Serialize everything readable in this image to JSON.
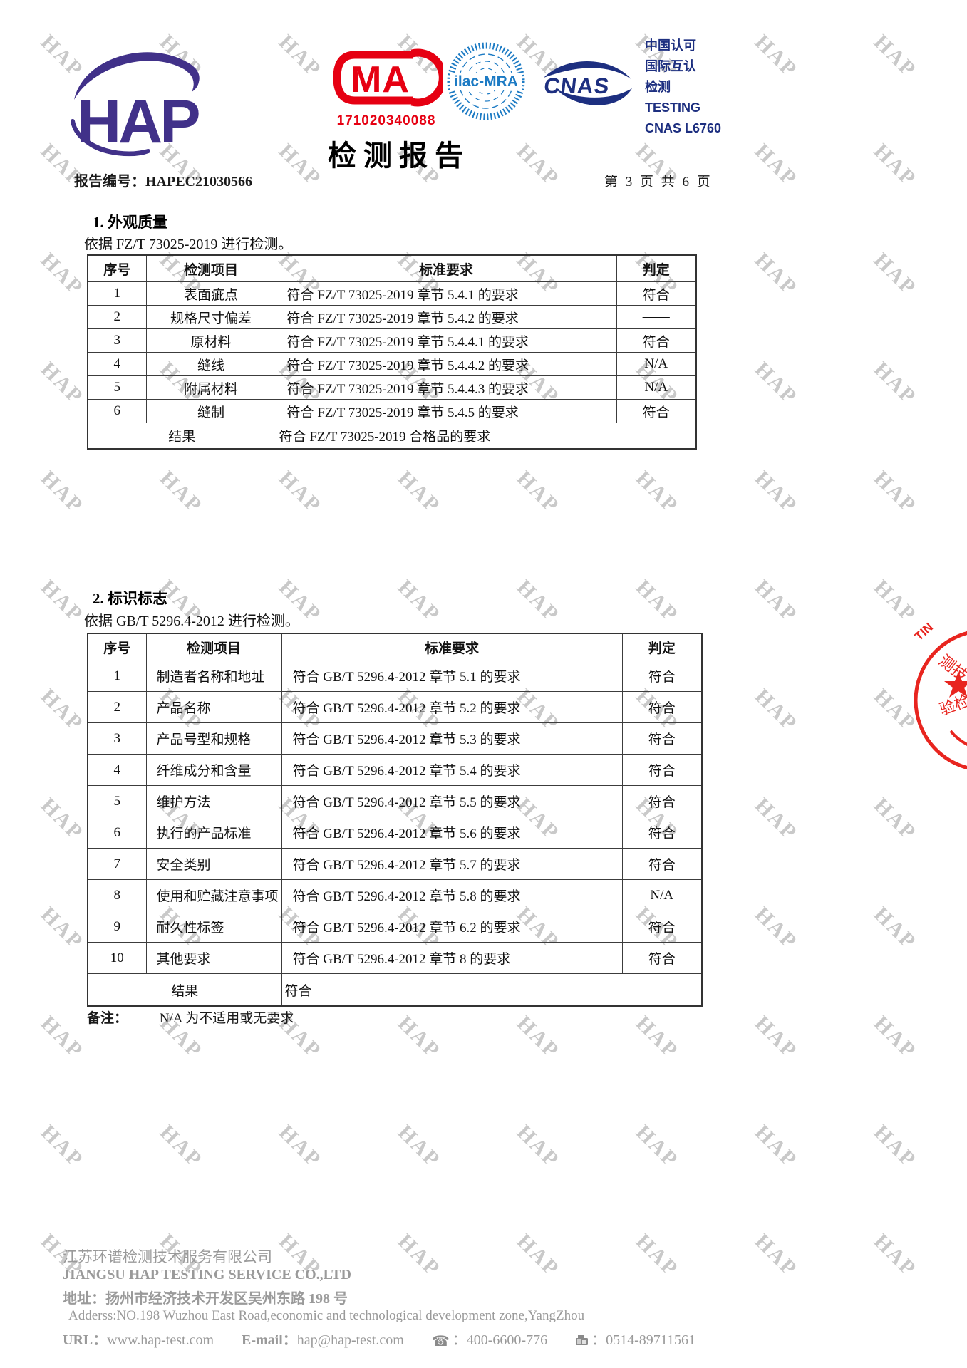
{
  "header": {
    "logo_text": "HAP",
    "cma": {
      "letters": "MA",
      "number": "171020340088"
    },
    "ilac": {
      "label": "ilac-MRA"
    },
    "cnas": {
      "label": "CNAS"
    },
    "accreditation_lines": {
      "l1": "中国认可",
      "l2": "国际互认",
      "l3": "检测",
      "l4": "TESTING",
      "l5": "CNAS L6760"
    },
    "title": "检测报告",
    "report_no": "报告编号：HAPEC21030566",
    "page_info": "第 3 页 共 6 页"
  },
  "section1": {
    "heading": "1. 外观质量",
    "basis": "依据 FZ/T 73025-2019 进行检测。",
    "columns": [
      "序号",
      "检测项目",
      "标准要求",
      "判定"
    ],
    "rows": [
      [
        "1",
        "表面疵点",
        "符合 FZ/T 73025-2019  章节 5.4.1 的要求",
        "符合"
      ],
      [
        "2",
        "规格尺寸偏差",
        "符合 FZ/T 73025-2019  章节 5.4.2 的要求",
        "——"
      ],
      [
        "3",
        "原材料",
        "符合 FZ/T 73025-2019  章节 5.4.4.1 的要求",
        "符合"
      ],
      [
        "4",
        "缝线",
        "符合 FZ/T 73025-2019  章节 5.4.4.2 的要求",
        "N/A"
      ],
      [
        "5",
        "附属材料",
        "符合 FZ/T 73025-2019  章节 5.4.4.3 的要求",
        "N/A"
      ],
      [
        "6",
        "缝制",
        "符合 FZ/T 73025-2019  章节 5.4.5 的要求",
        "符合"
      ]
    ],
    "result_label": "结果",
    "result_value": "符合 FZ/T 73025-2019  合格品的要求"
  },
  "section2": {
    "heading": "2. 标识标志",
    "basis": "依据  GB/T 5296.4-2012 进行检测。",
    "columns": [
      "序号",
      "检测项目",
      "标准要求",
      "判定"
    ],
    "rows": [
      [
        "1",
        "制造者名称和地址",
        "符合  GB/T 5296.4-2012  章节 5.1 的要求",
        "符合"
      ],
      [
        "2",
        "产品名称",
        "符合  GB/T 5296.4-2012  章节 5.2 的要求",
        "符合"
      ],
      [
        "3",
        "产品号型和规格",
        "符合  GB/T 5296.4-2012  章节 5.3 的要求",
        "符合"
      ],
      [
        "4",
        "纤维成分和含量",
        "符合  GB/T 5296.4-2012  章节 5.4 的要求",
        "符合"
      ],
      [
        "5",
        "维护方法",
        "符合  GB/T 5296.4-2012  章节 5.5 的要求",
        "符合"
      ],
      [
        "6",
        "执行的产品标准",
        "符合  GB/T 5296.4-2012  章节 5.6 的要求",
        "符合"
      ],
      [
        "7",
        "安全类别",
        "符合  GB/T 5296.4-2012  章节 5.7 的要求",
        "符合"
      ],
      [
        "8",
        "使用和贮藏注意事项",
        "符合  GB/T 5296.4-2012  章节 5.8 的要求",
        "N/A"
      ],
      [
        "9",
        "耐久性标签",
        "符合  GB/T 5296.4-2012  章节 6.2 的要求",
        "符合"
      ],
      [
        "10",
        "其他要求",
        "符合  GB/T 5296.4-2012  章节 8 的要求",
        "符合"
      ]
    ],
    "result_label": "结果",
    "result_value": "符合"
  },
  "note": {
    "label": "备注：",
    "text": "N/A 为不适用或无要求"
  },
  "stamp": {
    "arc_text": "TIN",
    "upper_chars": "测技",
    "lower_chars": "验检"
  },
  "footer": {
    "company_cn": "江苏环谱检测技术服务有限公司",
    "company_en": "JIANGSU HAP TESTING SERVICE CO.,LTD",
    "address_cn": "地址：扬州市经济技术开发区吴州东路 198 号",
    "address_en": "Adderss:NO.198 Wuzhou East Road,economic and technological development zone,YangZhou",
    "url_label": "URL：",
    "url_value": "www.hap-test.com",
    "email_label": "E-mail：",
    "email_value": "hap@hap-test.com",
    "phone_value": "400-6600-776",
    "fax_value": "0514-89711561"
  },
  "watermark_text": "HAP",
  "colors": {
    "logo_purple": "#413189",
    "cma_red": "#e60012",
    "ilac_blue": "#1d7bc4",
    "cnas_navy": "#1d2f80",
    "stamp_red": "#e8251f",
    "footer_gray": "#9a9a9a",
    "watermark_gray": "#c9c9c9"
  }
}
